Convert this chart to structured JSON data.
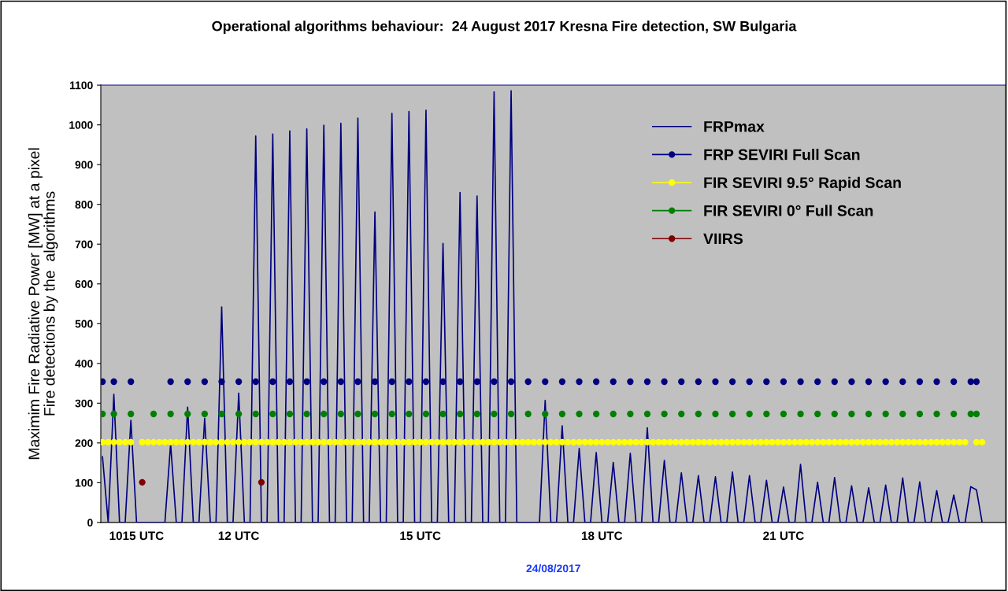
{
  "chart_data": {
    "type": "line",
    "title": "Operational algorithms behaviour:  24 August 2017 Kresna Fire detection, SW Bulgaria",
    "xlabel": "24/08/2017",
    "ylabel": "Maximim Fire Radiative Power [MW] at a pixel\nFire detections by the  algorithms",
    "categories": [
      null,
      null,
      null,
      null,
      null,
      null,
      "1015 UTC",
      null,
      null,
      null,
      null,
      null,
      null,
      null,
      null,
      null,
      null,
      null,
      null,
      null,
      null,
      null,
      null,
      null,
      "12 UTC",
      null,
      null,
      null,
      null,
      null,
      null,
      null,
      null,
      null,
      null,
      null,
      null,
      null,
      null,
      null,
      null,
      null,
      null,
      null,
      null,
      null,
      null,
      null,
      null,
      null,
      null,
      null,
      null,
      null,
      null,
      null,
      "15 UTC",
      null,
      null,
      null,
      null,
      null,
      null,
      null,
      null,
      null,
      null,
      null,
      null,
      null,
      null,
      null,
      null,
      null,
      null,
      null,
      null,
      null,
      null,
      null,
      null,
      null,
      null,
      null,
      null,
      null,
      null,
      null,
      "18 UTC",
      null,
      null,
      null,
      null,
      null,
      null,
      null,
      null,
      null,
      null,
      null,
      null,
      null,
      null,
      null,
      null,
      null,
      null,
      null,
      null,
      null,
      null,
      null,
      null,
      null,
      null,
      null,
      null,
      null,
      null,
      null,
      "21 UTC",
      null,
      null,
      null,
      null,
      null,
      null,
      null,
      null,
      null,
      null,
      null,
      null,
      null,
      null,
      null,
      null,
      null,
      null,
      null,
      null,
      null,
      null,
      null,
      null,
      null,
      null,
      null,
      null,
      null,
      null,
      null,
      null,
      null,
      null,
      null
    ],
    "series": [
      {
        "name": "FRPmax",
        "color": "#000080",
        "marker": "none",
        "values": [
          165,
          0,
          322,
          0,
          0,
          257,
          0,
          0,
          0,
          0,
          0,
          0,
          198,
          0,
          0,
          290,
          0,
          0,
          262,
          0,
          0,
          542,
          0,
          0,
          325,
          0,
          0,
          972,
          0,
          0,
          977,
          0,
          0,
          985,
          0,
          0,
          990,
          0,
          0,
          999,
          0,
          0,
          1004,
          0,
          0,
          1017,
          0,
          0,
          781,
          0,
          0,
          1029,
          0,
          0,
          1034,
          0,
          0,
          1037,
          0,
          0,
          702,
          0,
          0,
          830,
          0,
          0,
          821,
          0,
          0,
          1083,
          0,
          0,
          1086,
          0,
          0,
          0,
          0,
          0,
          307,
          0,
          0,
          243,
          0,
          0,
          186,
          0,
          0,
          176,
          0,
          0,
          151,
          0,
          0,
          174,
          0,
          0,
          238,
          0,
          0,
          156,
          0,
          0,
          125,
          0,
          0,
          118,
          0,
          0,
          115,
          0,
          0,
          127,
          0,
          0,
          118,
          0,
          0,
          106,
          0,
          0,
          89,
          0,
          0,
          146,
          0,
          0,
          101,
          0,
          0,
          113,
          0,
          0,
          92,
          0,
          0,
          87,
          0,
          0,
          94,
          0,
          0,
          112,
          0,
          0,
          102,
          0,
          0,
          80,
          0,
          0,
          69,
          0,
          0,
          90,
          82,
          0
        ]
      },
      {
        "name": "FRP SEVIRI Full Scan",
        "type": "scatter",
        "color": "#000080",
        "marker": "circle",
        "values": [
          354,
          null,
          354,
          null,
          null,
          354,
          null,
          null,
          null,
          null,
          null,
          null,
          354,
          null,
          null,
          354,
          null,
          null,
          354,
          null,
          null,
          354,
          null,
          null,
          354,
          null,
          null,
          354,
          null,
          null,
          354,
          null,
          null,
          354,
          null,
          null,
          354,
          null,
          null,
          354,
          null,
          null,
          354,
          null,
          null,
          354,
          null,
          null,
          354,
          null,
          null,
          354,
          null,
          null,
          354,
          null,
          null,
          354,
          null,
          null,
          354,
          null,
          null,
          354,
          null,
          null,
          354,
          null,
          null,
          354,
          null,
          null,
          354,
          null,
          null,
          354,
          null,
          null,
          354,
          null,
          null,
          354,
          null,
          null,
          354,
          null,
          null,
          354,
          null,
          null,
          354,
          null,
          null,
          354,
          null,
          null,
          354,
          null,
          null,
          354,
          null,
          null,
          354,
          null,
          null,
          354,
          null,
          null,
          354,
          null,
          null,
          354,
          null,
          null,
          354,
          null,
          null,
          354,
          null,
          null,
          354,
          null,
          null,
          354,
          null,
          null,
          354,
          null,
          null,
          354,
          null,
          null,
          354,
          null,
          null,
          354,
          null,
          null,
          354,
          null,
          null,
          354,
          null,
          null,
          354,
          null,
          null,
          354,
          null,
          null,
          354,
          null,
          null,
          354,
          354,
          null
        ]
      },
      {
        "name": "FIR SEVIRI 9.5° Rapid Scan",
        "type": "scatter",
        "color": "#ffff00",
        "marker": "circle",
        "values": [
          202,
          202,
          202,
          202,
          202,
          202,
          null,
          202,
          202,
          202,
          202,
          202,
          202,
          202,
          202,
          202,
          202,
          202,
          202,
          202,
          202,
          202,
          202,
          202,
          202,
          202,
          202,
          202,
          202,
          202,
          202,
          202,
          202,
          202,
          202,
          202,
          202,
          202,
          202,
          202,
          202,
          202,
          202,
          202,
          202,
          202,
          202,
          202,
          202,
          202,
          202,
          202,
          202,
          202,
          202,
          202,
          202,
          202,
          202,
          202,
          202,
          202,
          202,
          202,
          202,
          202,
          202,
          202,
          202,
          202,
          202,
          202,
          202,
          202,
          202,
          202,
          202,
          202,
          202,
          202,
          202,
          202,
          202,
          202,
          202,
          202,
          202,
          202,
          202,
          202,
          202,
          202,
          202,
          202,
          202,
          202,
          202,
          202,
          202,
          202,
          202,
          202,
          202,
          202,
          202,
          202,
          202,
          202,
          202,
          202,
          202,
          202,
          202,
          202,
          202,
          202,
          202,
          202,
          202,
          202,
          202,
          202,
          202,
          202,
          202,
          202,
          202,
          202,
          202,
          202,
          202,
          202,
          202,
          202,
          202,
          202,
          202,
          202,
          202,
          202,
          202,
          202,
          202,
          202,
          202,
          202,
          202,
          202,
          202,
          202,
          202,
          202,
          202,
          null,
          202,
          202
        ]
      },
      {
        "name": "FIR SEVIRI 0° Full Scan",
        "type": "scatter",
        "color": "#008000",
        "marker": "circle",
        "values": [
          273,
          null,
          273,
          null,
          null,
          273,
          null,
          null,
          null,
          273,
          null,
          null,
          273,
          null,
          null,
          273,
          null,
          null,
          273,
          null,
          null,
          273,
          null,
          null,
          273,
          null,
          null,
          273,
          null,
          null,
          273,
          null,
          null,
          273,
          null,
          null,
          273,
          null,
          null,
          273,
          null,
          null,
          273,
          null,
          null,
          273,
          null,
          null,
          273,
          null,
          null,
          273,
          null,
          null,
          273,
          null,
          null,
          273,
          null,
          null,
          273,
          null,
          null,
          273,
          null,
          null,
          273,
          null,
          null,
          273,
          null,
          null,
          273,
          null,
          null,
          273,
          null,
          null,
          273,
          null,
          null,
          273,
          null,
          null,
          273,
          null,
          null,
          273,
          null,
          null,
          273,
          null,
          null,
          273,
          null,
          null,
          273,
          null,
          null,
          273,
          null,
          null,
          273,
          null,
          null,
          273,
          null,
          null,
          273,
          null,
          null,
          273,
          null,
          null,
          273,
          null,
          null,
          273,
          null,
          null,
          273,
          null,
          null,
          273,
          null,
          null,
          273,
          null,
          null,
          273,
          null,
          null,
          273,
          null,
          null,
          273,
          null,
          null,
          273,
          null,
          null,
          273,
          null,
          null,
          273,
          null,
          null,
          273,
          null,
          null,
          273,
          null,
          null,
          273,
          273,
          null
        ]
      },
      {
        "name": "VIIRS",
        "type": "scatter",
        "color": "#800000",
        "marker": "circle",
        "values": [
          null,
          null,
          null,
          null,
          null,
          null,
          null,
          101,
          null,
          null,
          null,
          null,
          null,
          null,
          null,
          null,
          null,
          null,
          null,
          null,
          null,
          null,
          null,
          null,
          null,
          null,
          null,
          null,
          101,
          null,
          null,
          null,
          null,
          null,
          null,
          null,
          null,
          null,
          null,
          null,
          null,
          null,
          null,
          null,
          null,
          null,
          null,
          null,
          null,
          null,
          null,
          null,
          null,
          null,
          null,
          null,
          null,
          null,
          null,
          null,
          null,
          null,
          null,
          null,
          null,
          null,
          null,
          null,
          null,
          null,
          null,
          null,
          null,
          null,
          null,
          null,
          null,
          null,
          null,
          null,
          null,
          null,
          null,
          null,
          null,
          null,
          null,
          null,
          null,
          null,
          null,
          null,
          null,
          null,
          null,
          null,
          null,
          null,
          null,
          null,
          null,
          null,
          null,
          null,
          null,
          null,
          null,
          null,
          null,
          null,
          null,
          null,
          null,
          null,
          null,
          null,
          null,
          null,
          null,
          null,
          null,
          null,
          null,
          null,
          null,
          null,
          null,
          null,
          null,
          null,
          null,
          null,
          null,
          null,
          null,
          null,
          null,
          null,
          null,
          null,
          null,
          null,
          null,
          null,
          null,
          null,
          null,
          null,
          null,
          null,
          null,
          null,
          null,
          null,
          null,
          null
        ]
      }
    ],
    "ylim": [
      0,
      1100
    ],
    "yticks": [
      0,
      100,
      200,
      300,
      400,
      500,
      600,
      700,
      800,
      900,
      1000,
      1100
    ],
    "legend": "top right"
  }
}
